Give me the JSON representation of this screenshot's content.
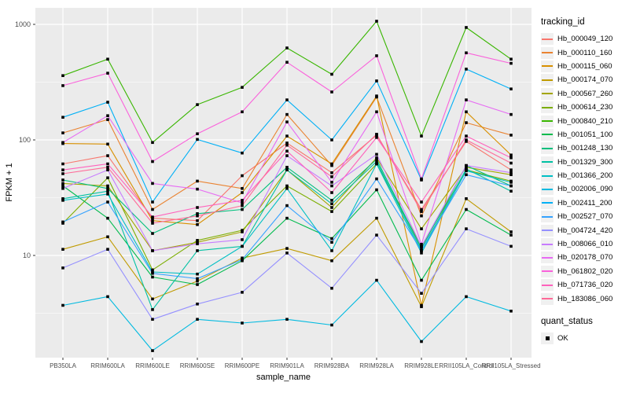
{
  "figure": {
    "ylabel": "FPKM + 1",
    "xlabel": "sample_name"
  },
  "legend": {
    "tracking_title": "tracking_id",
    "quant_title": "quant_status",
    "quant_ok_label": "OK"
  },
  "colors": {
    "panel_bg": "#EBEBEB",
    "grid_major": "#FFFFFF",
    "grid_minor": "#FFFFFF",
    "axis_text": "#4D4D4D",
    "tick_mark": "#333333",
    "point": "#000000",
    "legend_key_bg": "#F0F0F0"
  },
  "chart_data": {
    "type": "line",
    "title": "",
    "xlabel": "sample_name",
    "ylabel": "FPKM + 1",
    "y_scale": "log10",
    "y_ticks": [
      10,
      100,
      1000
    ],
    "y_minor_ticks": [
      3.162,
      31.62,
      316.2
    ],
    "ylim": [
      1.4,
      1300
    ],
    "grid": true,
    "legend_position": "right",
    "point_marker": "filled-black-square",
    "quant_status": {
      "label": "OK",
      "marker_color": "#000000"
    },
    "categories": [
      "PB350LA",
      "RRIM600LA",
      "RRIM600LE",
      "RRIM600SE",
      "RRIM600PE",
      "RRIM901LA",
      "RRIM928BA",
      "RRIM928LA",
      "RRIM928LE",
      "RRII105LA_Control",
      "RRII105LA_Stressed"
    ],
    "series": [
      {
        "name": "Hb_000049_120",
        "color": "#F8766D",
        "values": [
          62,
          73,
          21,
          20,
          49,
          94,
          52,
          110,
          25,
          97,
          55
        ]
      },
      {
        "name": "Hb_000110_160",
        "color": "#EA8331",
        "values": [
          115,
          150,
          25,
          44,
          38,
          166,
          60,
          235,
          22,
          141,
          110
        ]
      },
      {
        "name": "Hb_000115_060",
        "color": "#D89000",
        "values": [
          93,
          92,
          20,
          18.5,
          35,
          108,
          62,
          240,
          3.7,
          175,
          74
        ]
      },
      {
        "name": "Hb_000174_070",
        "color": "#C09B00",
        "values": [
          11.3,
          14.5,
          4.2,
          6.0,
          9.5,
          11.5,
          9,
          21,
          3.6,
          31,
          16
        ]
      },
      {
        "name": "Hb_000567_260",
        "color": "#A3A500",
        "values": [
          42,
          40,
          11,
          13,
          16,
          55,
          26,
          70,
          17,
          58,
          50
        ]
      },
      {
        "name": "Hb_000614_230",
        "color": "#7CAE00",
        "values": [
          19,
          47,
          7.5,
          13.5,
          16.5,
          40,
          24,
          62,
          12,
          55,
          44
        ]
      },
      {
        "name": "Hb_000840_210",
        "color": "#39B600",
        "values": [
          360,
          500,
          95,
          202,
          285,
          625,
          370,
          1065,
          108,
          940,
          500
        ]
      },
      {
        "name": "Hb_001051_100",
        "color": "#00BB4E",
        "values": [
          40,
          21,
          6.5,
          5.6,
          9,
          21,
          14,
          37,
          6.1,
          25,
          15
        ]
      },
      {
        "name": "Hb_001248_130",
        "color": "#00BF7D",
        "values": [
          45,
          38,
          15.5,
          23,
          25,
          58,
          30,
          68,
          11.5,
          60,
          40
        ]
      },
      {
        "name": "Hb_001329_300",
        "color": "#00C1A3",
        "values": [
          31,
          36,
          3.4,
          11,
          12,
          55,
          28,
          65,
          11,
          56,
          36
        ]
      },
      {
        "name": "Hb_001366_200",
        "color": "#00BFC4",
        "values": [
          30,
          34,
          7.2,
          6.9,
          12,
          38,
          11,
          62,
          10.5,
          54,
          43
        ]
      },
      {
        "name": "Hb_002006_090",
        "color": "#00BAE0",
        "values": [
          3.7,
          4.4,
          1.5,
          2.8,
          2.6,
          2.8,
          2.5,
          6.1,
          1.8,
          4.4,
          3.3
        ]
      },
      {
        "name": "Hb_002411_200",
        "color": "#00B0F6",
        "values": [
          157,
          212,
          29,
          101,
          77,
          222,
          100,
          324,
          45,
          410,
          276
        ]
      },
      {
        "name": "Hb_002527_070",
        "color": "#35A2FF",
        "values": [
          19.5,
          29,
          7.0,
          6.3,
          9.2,
          27,
          13,
          46,
          11,
          50,
          40
        ]
      },
      {
        "name": "Hb_004724_420",
        "color": "#9590FF",
        "values": [
          7.8,
          11.3,
          2.8,
          3.8,
          4.8,
          10.5,
          5.2,
          15,
          4.7,
          17,
          12
        ]
      },
      {
        "name": "Hb_008066_010",
        "color": "#C77CFF",
        "values": [
          38,
          55,
          11,
          12.6,
          13.7,
          73,
          40,
          75,
          12,
          60,
          52
        ]
      },
      {
        "name": "Hb_020178_070",
        "color": "#E76BF3",
        "values": [
          95,
          162,
          42,
          37.5,
          28.5,
          143,
          43,
          175,
          12.5,
          222,
          166
        ]
      },
      {
        "name": "Hb_061802_020",
        "color": "#FA62DB",
        "values": [
          295,
          378,
          65,
          113,
          175,
          470,
          260,
          535,
          46,
          567,
          460
        ]
      },
      {
        "name": "Hb_071736_020",
        "color": "#FF62BC",
        "values": [
          55,
          62,
          21.5,
          26,
          30,
          80,
          35,
          105,
          29,
          108,
          70
        ]
      },
      {
        "name": "Hb_183086_060",
        "color": "#FF6A98",
        "values": [
          51,
          58,
          19,
          22,
          27,
          90,
          48,
          112,
          24,
          100,
          63
        ]
      }
    ]
  }
}
